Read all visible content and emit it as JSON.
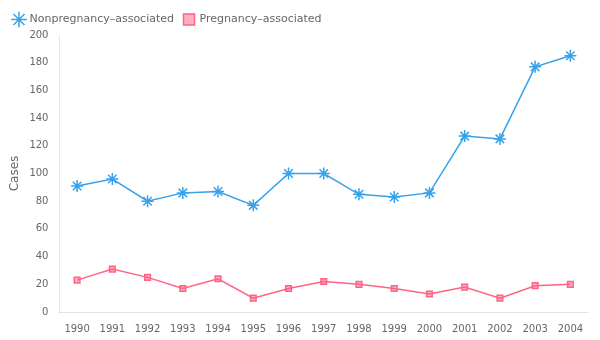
{
  "chart_data": {
    "type": "line",
    "x": [
      1990,
      1991,
      1992,
      1993,
      1994,
      1995,
      1996,
      1997,
      1998,
      1999,
      2000,
      2001,
      2002,
      2003,
      2004
    ],
    "xlim": [
      1989.5,
      2004.5
    ],
    "xticks": [
      1990,
      1991,
      1992,
      1993,
      1994,
      1995,
      1996,
      1997,
      1998,
      1999,
      2000,
      2001,
      2002,
      2003,
      2004
    ],
    "ylim": [
      0,
      200
    ],
    "yticks": [
      0,
      20,
      40,
      60,
      80,
      100,
      120,
      140,
      160,
      180,
      200
    ],
    "ylabel": "Cases",
    "grid": false,
    "legend": "upper left",
    "series": [
      {
        "name": "Nonpregnancy–associated",
        "marker": "star",
        "values": [
          91,
          96,
          80,
          86,
          87,
          77,
          100,
          100,
          85,
          83,
          86,
          127,
          125,
          177,
          185
        ]
      },
      {
        "name": "Pregnancy–associated",
        "marker": "square",
        "values": [
          23,
          31,
          25,
          17,
          24,
          10,
          17,
          22,
          20,
          17,
          13,
          18,
          10,
          19,
          20
        ]
      }
    ]
  }
}
